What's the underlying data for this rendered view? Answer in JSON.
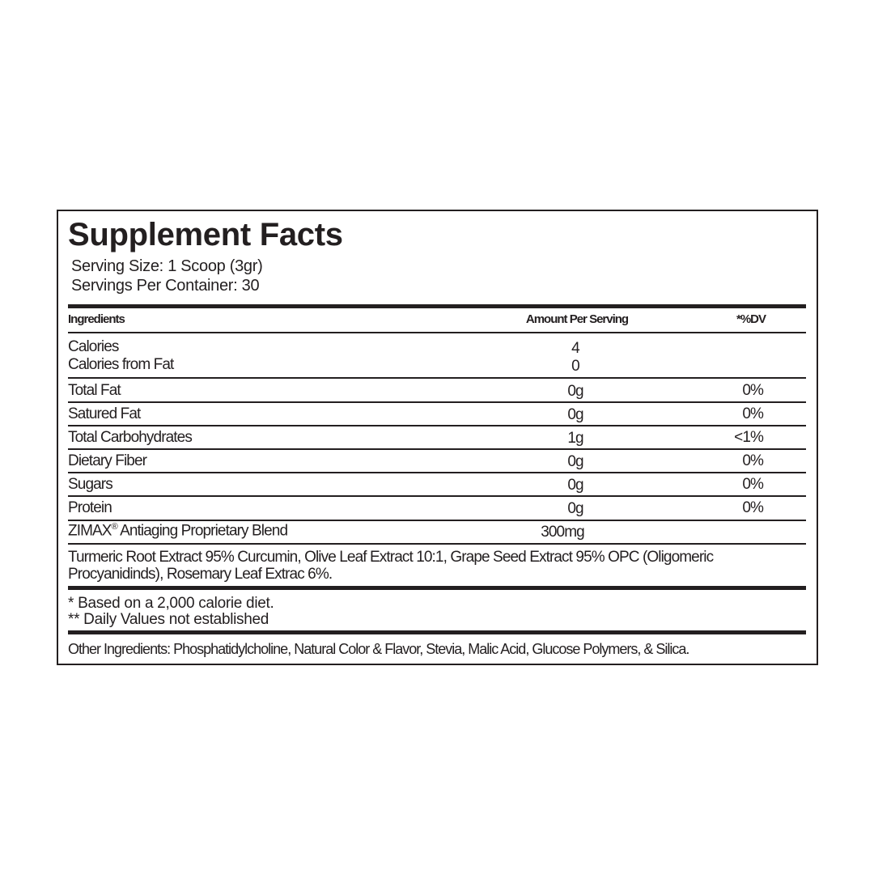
{
  "title": "Supplement Facts",
  "serving_size": "Serving Size: 1 Scoop (3gr)",
  "servings_per_container": "Servings Per Container: 30",
  "headers": {
    "ingredients": "Ingredients",
    "amount": "Amount Per Serving",
    "dv": "*%DV"
  },
  "rows": [
    {
      "name": "Calories",
      "amount": "4",
      "dv": ""
    },
    {
      "name": "Calories from Fat",
      "amount": "0",
      "dv": ""
    },
    {
      "name": "Total Fat",
      "amount": "0g",
      "dv": "0%"
    },
    {
      "name": "Satured Fat",
      "amount": "0g",
      "dv": "0%"
    },
    {
      "name": "Total Carbohydrates",
      "amount": "1g",
      "dv": "<1%"
    },
    {
      "name": "Dietary Fiber",
      "amount": "0g",
      "dv": "0%"
    },
    {
      "name": "Sugars",
      "amount": "0g",
      "dv": "0%"
    },
    {
      "name": "Protein",
      "amount": "0g",
      "dv": "0%"
    }
  ],
  "blend": {
    "brand": "ZIMAX",
    "reg": "®",
    "name": " Antiaging Proprietary Blend",
    "amount": "300mg"
  },
  "blend_ingredients_line1": "Turmeric Root Extract 95% Curcumin, Olive Leaf Extract 10:1, Grape Seed Extract 95% OPC (Oligomeric",
  "blend_ingredients_line2": "Procyanidinds), Rosemary Leaf Extrac 6%.",
  "footnote1": "* Based on a 2,000 calorie diet.",
  "footnote2": "** Daily Values not established",
  "other_ingredients": "Other Ingredients: Phosphatidylcholine, Natural Color & Flavor, Stevia, Malic Acid, Glucose Polymers, & Silica."
}
